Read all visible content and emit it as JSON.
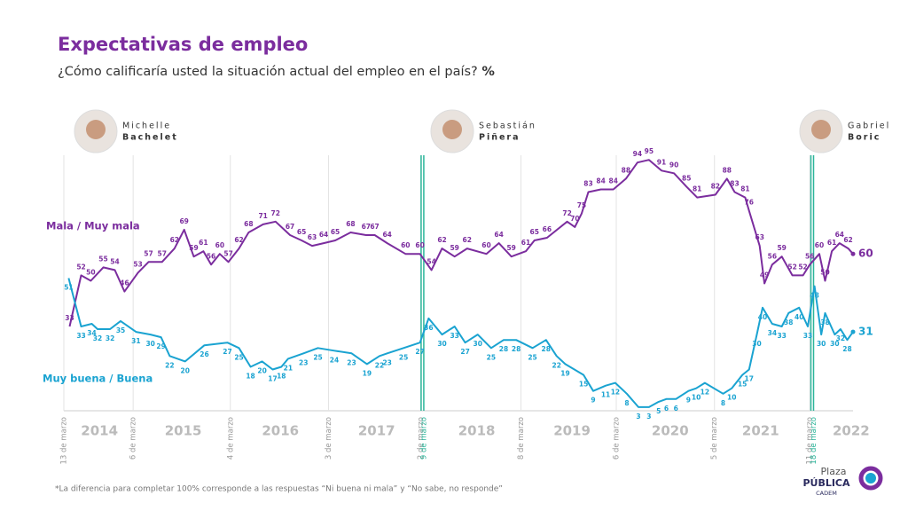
{
  "chart_data": {
    "type": "line",
    "title": "Expectativas de empleo",
    "subtitle": "¿Cómo calificaría usted la situación actual del empleo en el país?",
    "subtitle_unit": "%",
    "presidents": [
      {
        "first": "Michelle",
        "last": "Bachelet"
      },
      {
        "first": "Sebastián",
        "last": "Piñera"
      },
      {
        "first": "Gabriel",
        "last": "Boric"
      }
    ],
    "xlim": [
      2014.2,
      2022.4
    ],
    "ylim": [
      0,
      100
    ],
    "xticks": [
      {
        "value": 2014.2,
        "label": "13 de marzo"
      },
      {
        "value": 2014.92,
        "label": "6 de marzo"
      },
      {
        "value": 2015.93,
        "label": "4 de marzo"
      },
      {
        "value": 2016.95,
        "label": "3 de marzo"
      },
      {
        "value": 2017.91,
        "label": "2 de marzo"
      },
      {
        "value": 2017.94,
        "label": "9 de marzo",
        "color": "#2bb59a"
      },
      {
        "value": 2018.95,
        "label": "8 de marzo"
      },
      {
        "value": 2019.94,
        "label": "6 de marzo"
      },
      {
        "value": 2020.96,
        "label": "5 de marzo"
      },
      {
        "value": 2021.95,
        "label": "11 de marzo"
      },
      {
        "value": 2021.99,
        "label": "18 de marzo",
        "color": "#2bb59a"
      }
    ],
    "year_labels": [
      {
        "value": 2014.57,
        "label": "2014"
      },
      {
        "value": 2015.44,
        "label": "2015"
      },
      {
        "value": 2016.45,
        "label": "2016"
      },
      {
        "value": 2017.45,
        "label": "2017"
      },
      {
        "value": 2018.49,
        "label": "2018"
      },
      {
        "value": 2019.48,
        "label": "2019"
      },
      {
        "value": 2020.5,
        "label": "2020"
      },
      {
        "value": 2021.44,
        "label": "2021"
      },
      {
        "value": 2022.38,
        "label": "2022"
      }
    ],
    "series": [
      {
        "name": "Mala / Muy mala",
        "color": "#7b2d9e",
        "x": [
          2014.26,
          2014.38,
          2014.48,
          2014.61,
          2014.73,
          2014.83,
          2014.97,
          2015.08,
          2015.22,
          2015.35,
          2015.45,
          2015.55,
          2015.65,
          2015.73,
          2015.82,
          2015.91,
          2016.02,
          2016.12,
          2016.27,
          2016.4,
          2016.55,
          2016.67,
          2016.78,
          2016.9,
          2017.02,
          2017.18,
          2017.34,
          2017.43,
          2017.56,
          2017.75,
          2017.9,
          2018.02,
          2018.13,
          2018.26,
          2018.39,
          2018.59,
          2018.72,
          2018.85,
          2019.0,
          2019.09,
          2019.22,
          2019.43,
          2019.51,
          2019.58,
          2019.65,
          2019.78,
          2019.91,
          2020.04,
          2020.16,
          2020.28,
          2020.41,
          2020.54,
          2020.67,
          2020.78,
          2020.97,
          2021.09,
          2021.17,
          2021.28,
          2021.32,
          2021.43,
          2021.48,
          2021.56,
          2021.66,
          2021.77,
          2021.88,
          2021.95,
          2022.05,
          2022.11,
          2022.18,
          2022.26,
          2022.35,
          2022.4
        ],
        "values": [
          33,
          52,
          50,
          55,
          54,
          46,
          53,
          57,
          57,
          62,
          69,
          59,
          61,
          56,
          60,
          57,
          62,
          68,
          71,
          72,
          67,
          65,
          63,
          64,
          65,
          68,
          67,
          67,
          64,
          60,
          60,
          54,
          62,
          59,
          62,
          60,
          64,
          59,
          61,
          65,
          66,
          72,
          70,
          75,
          83,
          84,
          84,
          88,
          94,
          95,
          91,
          90,
          85,
          81,
          82,
          88,
          83,
          81,
          76,
          63,
          49,
          56,
          59,
          52,
          52,
          56,
          60,
          50,
          61,
          64,
          62,
          60
        ]
      },
      {
        "name": "Muy buena / Buena",
        "color": "#1aa3d1",
        "x": [
          2014.25,
          2014.38,
          2014.49,
          2014.55,
          2014.68,
          2014.79,
          2014.95,
          2015.1,
          2015.21,
          2015.3,
          2015.46,
          2015.66,
          2015.9,
          2016.02,
          2016.14,
          2016.26,
          2016.37,
          2016.46,
          2016.53,
          2016.69,
          2016.84,
          2017.01,
          2017.19,
          2017.35,
          2017.48,
          2017.56,
          2017.73,
          2017.9,
          2017.99,
          2018.13,
          2018.26,
          2018.37,
          2018.5,
          2018.64,
          2018.77,
          2018.9,
          2019.07,
          2019.21,
          2019.32,
          2019.41,
          2019.6,
          2019.7,
          2019.83,
          2019.93,
          2020.05,
          2020.17,
          2020.28,
          2020.38,
          2020.46,
          2020.56,
          2020.69,
          2020.77,
          2020.86,
          2021.05,
          2021.14,
          2021.25,
          2021.32,
          2021.4,
          2021.46,
          2021.56,
          2021.66,
          2021.73,
          2021.84,
          2021.93,
          2022.0,
          2022.07,
          2022.11,
          2022.21,
          2022.27,
          2022.34,
          2022.4
        ],
        "values": [
          51,
          33,
          34,
          32,
          32,
          35,
          31,
          30,
          29,
          22,
          20,
          26,
          27,
          25,
          18,
          20,
          17,
          18,
          21,
          23,
          25,
          24,
          23,
          19,
          22,
          23,
          25,
          27,
          36,
          30,
          33,
          27,
          30,
          25,
          28,
          28,
          25,
          28,
          22,
          19,
          15,
          9,
          11,
          12,
          8,
          3,
          3,
          5,
          6,
          6,
          9,
          10,
          12,
          8,
          10,
          15,
          17,
          30,
          40,
          34,
          33,
          38,
          40,
          33,
          48,
          30,
          38,
          30,
          32,
          28,
          31
        ]
      }
    ],
    "footnote": "*La diferencia para completar 100% corresponde a las respuestas “Ni buena ni mala” y “No sabe, no responde”",
    "logo": {
      "top": "Plaza",
      "middle": "PÚBLICA",
      "bottom": "CADEM"
    }
  }
}
